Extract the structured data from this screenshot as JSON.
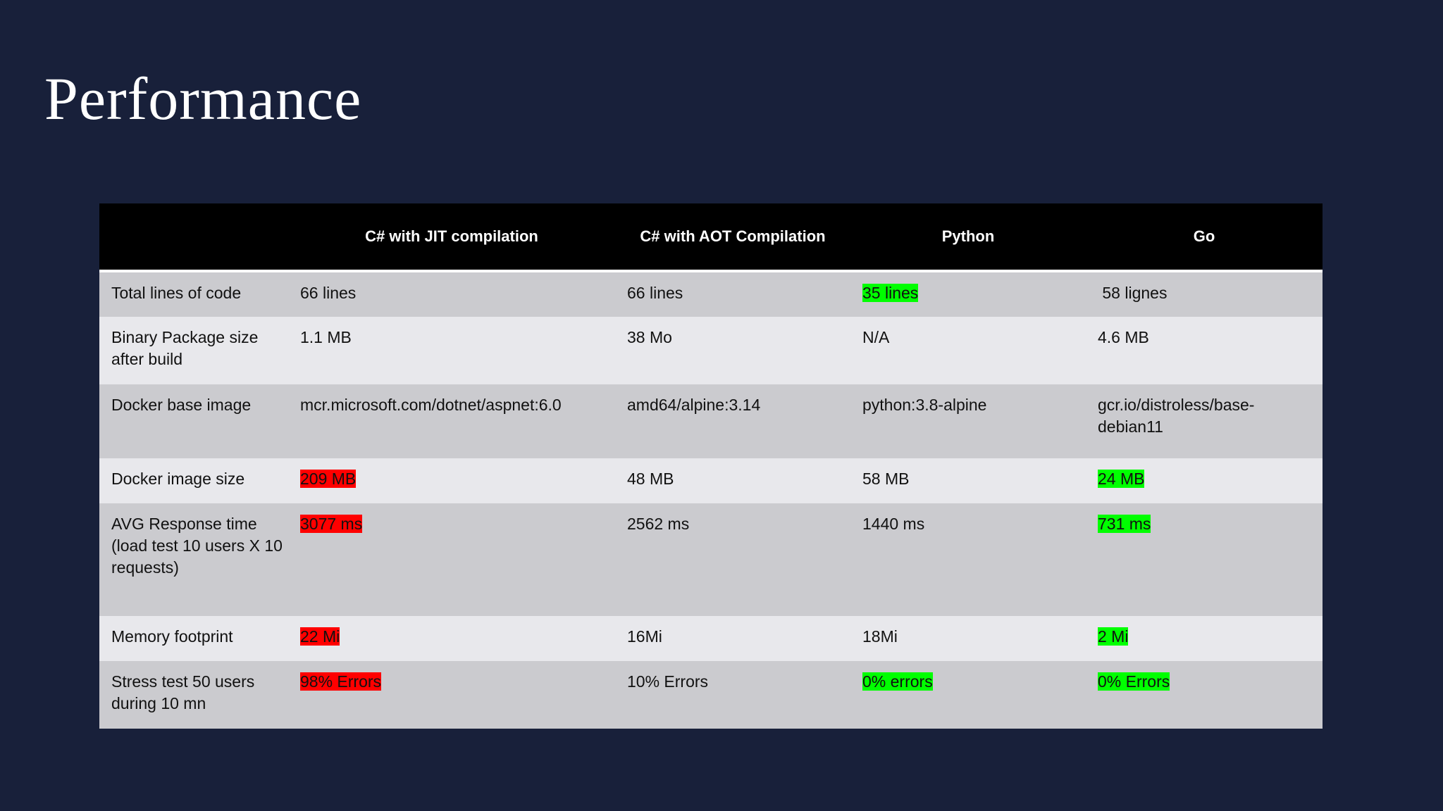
{
  "title": "Performance",
  "table": {
    "headers": [
      "",
      "C# with JIT compilation",
      "C# with AOT Compilation",
      "Python",
      "Go"
    ],
    "rows": [
      {
        "label": "Total lines of code",
        "cells": [
          {
            "text": "66 lines",
            "highlight": ""
          },
          {
            "text": "66 lines",
            "highlight": ""
          },
          {
            "text": "35 lines",
            "highlight": "green"
          },
          {
            "text": " 58 lignes",
            "highlight": ""
          }
        ]
      },
      {
        "label": "Binary Package size after build",
        "cells": [
          {
            "text": "1.1 MB",
            "highlight": ""
          },
          {
            "text": "38 Mo",
            "highlight": ""
          },
          {
            "text": "N/A",
            "highlight": ""
          },
          {
            "text": "4.6 MB",
            "highlight": ""
          }
        ]
      },
      {
        "label": "Docker base image",
        "cells": [
          {
            "text": "mcr.microsoft.com/dotnet/aspnet:6.0",
            "highlight": ""
          },
          {
            "text": "amd64/alpine:3.14",
            "highlight": ""
          },
          {
            "text": "python:3.8-alpine",
            "highlight": ""
          },
          {
            "text": "gcr.io/distroless/base-debian11",
            "highlight": ""
          }
        ]
      },
      {
        "label": "Docker image size",
        "cells": [
          {
            "text": "209 MB",
            "highlight": "red"
          },
          {
            "text": "48 MB",
            "highlight": ""
          },
          {
            "text": "58 MB",
            "highlight": ""
          },
          {
            "text": "24 MB",
            "highlight": "green"
          }
        ]
      },
      {
        "label": "AVG Response time (load test 10 users X 10 requests)",
        "cells": [
          {
            "text": "3077 ms",
            "highlight": "red"
          },
          {
            "text": "2562 ms",
            "highlight": ""
          },
          {
            "text": "1440 ms",
            "highlight": ""
          },
          {
            "text": "731 ms",
            "highlight": "green"
          }
        ]
      },
      {
        "label": "Memory footprint",
        "cells": [
          {
            "text": "22 Mi",
            "highlight": "red"
          },
          {
            "text": "16Mi",
            "highlight": ""
          },
          {
            "text": "18Mi",
            "highlight": ""
          },
          {
            "text": "2 Mi",
            "highlight": "green"
          }
        ]
      },
      {
        "label": "Stress test 50 users during 10 mn",
        "cells": [
          {
            "text": "98% Errors",
            "highlight": "red"
          },
          {
            "text": "10% Errors",
            "highlight": ""
          },
          {
            "text": "0% errors",
            "highlight": "green"
          },
          {
            "text": "0% Errors",
            "highlight": "green"
          }
        ]
      }
    ]
  },
  "colors": {
    "background": "#18203a",
    "header_background": "#000000",
    "row_odd": "#cbcbcf",
    "row_even": "#e8e8ec",
    "highlight_red": "#ff0000",
    "highlight_green": "#00ff00"
  }
}
